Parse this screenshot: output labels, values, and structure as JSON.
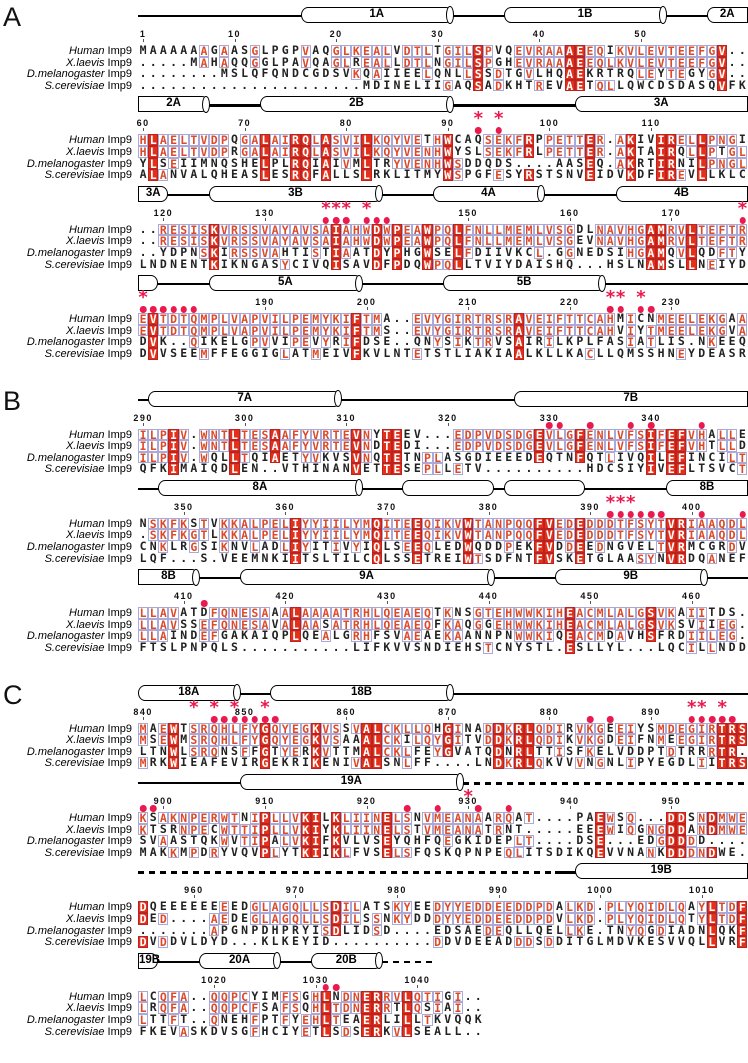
{
  "figure": {
    "description": "Multiple sequence alignment of Imp9 orthologs with secondary structure",
    "colors": {
      "conserved_box": "#e23019",
      "similar_text": "#dd4a28",
      "group_outline": "#a9a9da",
      "marker": "#ea1a4e",
      "structure_outline": "#000000"
    },
    "row_labels": [
      {
        "species": "Human",
        "rest": " Imp9"
      },
      {
        "species": "X.laevis",
        "rest": " Imp9"
      },
      {
        "species": "D.melanogaster",
        "rest": " Imp9"
      },
      {
        "species": "S.cerevisiae",
        "rest": " Imp9"
      }
    ],
    "panels": [
      {
        "letter": "A",
        "blocks": [
          {
            "start": 1,
            "cols": 60,
            "ticks": [
              1,
              10,
              20,
              30,
              40,
              50
            ],
            "asterisks": [],
            "dots": [],
            "structure": [
              {
                "type": "line",
                "from": 1,
                "to": 17
              },
              {
                "type": "helix",
                "label": "1A",
                "from": 17,
                "to": 31
              },
              {
                "type": "line",
                "from": 31,
                "to": 37
              },
              {
                "type": "helix",
                "label": "1B",
                "from": 37,
                "to": 52
              },
              {
                "type": "line",
                "from": 52,
                "to": 57
              },
              {
                "type": "helix",
                "label": "2A",
                "from": 57,
                "to": 60,
                "openRight": true
              }
            ],
            "seqs": [
              "MAAAAAAGAASGLPGPVAQGLKEALVDTLTGILSPVQEVRAAAEEQIKVLEVTEEFGV..",
              ".....MAHAQQGGLPAVQAGLREALLDTLNGILSPGHEVRAAAEEQLKVLEVTEEFGV..",
              "........MSLQFQNDCGDSVKQAIIEELQNLLSSDTGVLHQAEKRTRQLEYTEGYGV..",
              "......................MDINELIIGAQSADKHTREVAETQLLQWCDSDASQVFK"
            ]
          },
          {
            "start": 60,
            "cols": 60,
            "ticks": [
              60,
              70,
              80,
              90,
              100,
              110
            ],
            "asterisks": [
              93,
              95
            ],
            "dots": [
              93,
              95
            ],
            "structure": [
              {
                "type": "helix",
                "label": "2A",
                "from": 60,
                "to": 66,
                "openLeft": true
              },
              {
                "type": "line",
                "from": 66,
                "to": 72
              },
              {
                "type": "helix",
                "label": "2B",
                "from": 72,
                "to": 90
              },
              {
                "type": "line",
                "from": 90,
                "to": 103
              },
              {
                "type": "helix",
                "label": "3A",
                "from": 103,
                "to": 119,
                "openRight": true
              }
            ],
            "seqs": [
              "HLAELTVDPQGALAIRQLASVILKQYVETHWCAQSEKFRPPETTER.AKIVIRELLPNGI",
              "HLAELTVDPRGALAIRQLASVILKQYVENHWYSLSEKFRLPETTER.AKTAIRQLLPTGL",
              "YLSEIIMNQSHELPLRQIAIVMLTRYVENHWSDDQDS....AASEQ.AKRTIRNILPNGL",
              "ALANVALQHEASLESRQFALLSLRKLITMYWSPGFESYRSTSNVEIDVKDFIREVLLKLC"
            ]
          },
          {
            "start": 118,
            "cols": 60,
            "ticks": [
              120,
              130,
              150,
              160,
              170
            ],
            "asterisks": [
              136,
              137,
              138,
              140,
              177
            ],
            "dots": [
              136,
              137,
              138,
              140,
              141,
              142,
              177
            ],
            "structure": [
              {
                "type": "helix",
                "label": "3A",
                "from": 118,
                "to": 120,
                "openLeft": true
              },
              {
                "type": "line",
                "from": 120,
                "to": 125
              },
              {
                "type": "helix",
                "label": "3B",
                "from": 125,
                "to": 141
              },
              {
                "type": "line",
                "from": 141,
                "to": 147
              },
              {
                "type": "helix",
                "label": "4A",
                "from": 147,
                "to": 157
              },
              {
                "type": "line",
                "from": 157,
                "to": 165
              },
              {
                "type": "helix",
                "label": "4B",
                "from": 165,
                "to": 177,
                "openRight": true
              }
            ],
            "seqs": [
              "..RESISKVRSSVAYAVSAIAHWDWPEAWPQLFNLLMEMLVSGDLNAVHGAMRVLTEFTR",
              "..RESISKVRSSVAYAVSAIAHWDWPEAWPQLFNLLMEMLVSGEVNAVHGAMRVLTEFTR",
              "..YDPNSKIRSSVAHTISTIAATDYPHGWSELFDIIVKCL.GGNEDSIHGAMQVLQDFTY",
              "LNDNENTKIKNGASYCIVQISAVDFPDQWPQLLTVIYDAISHQ...HSLNAMSLLNEIYD"
            ]
          },
          {
            "start": 178,
            "cols": 60,
            "ticks": [
              190,
              200,
              210,
              220,
              230
            ],
            "asterisks": [
              178,
              224,
              225,
              227
            ],
            "dots": [
              178,
              179,
              180,
              181,
              182,
              183,
              224,
              225,
              227,
              228
            ],
            "structure": [
              {
                "type": "helix",
                "label": "",
                "from": 178,
                "to": 179,
                "openLeft": true
              },
              {
                "type": "line",
                "from": 179,
                "to": 185
              },
              {
                "type": "helix",
                "label": "5A",
                "from": 185,
                "to": 199
              },
              {
                "type": "line",
                "from": 199,
                "to": 208
              },
              {
                "type": "helix",
                "label": "5B",
                "from": 208,
                "to": 223
              },
              {
                "type": "line",
                "from": 223,
                "to": 237
              }
            ],
            "seqs": [
              "EVTDTQMPLVAPVILPEMYKIFTMA..EVYGIRTRSRAVEIFTTCAHMICNMEELEKGAA",
              "EVTDTQMPLVAPVILPEMYKIFTMS..EVYGIRTRSRAVEIFTTCAHVIYTMEELEKGVA",
              "DVK..QIKELGPVVIPEVYRIFDSE..QNYSIKTRVSAIRILKPLFASIATLIS.NKEEQ",
              "DVVSEEMFFEGGIGLATMEIVFKVLNTETSTLIAKIAALKLLKACLLQMSSHNEYDEASR"
            ]
          }
        ]
      },
      {
        "letter": "B",
        "blocks": [
          {
            "start": 290,
            "cols": 60,
            "ticks": [
              290,
              300,
              310,
              320,
              330,
              340
            ],
            "asterisks": [],
            "dots": [
              330,
              331,
              334,
              338,
              340,
              345
            ],
            "structure": [
              {
                "type": "line",
                "from": 290,
                "to": 291
              },
              {
                "type": "helix",
                "label": "7A",
                "from": 291,
                "to": 309
              },
              {
                "type": "line",
                "from": 309,
                "to": 327
              },
              {
                "type": "helix",
                "label": "7B",
                "from": 327,
                "to": 349,
                "openRight": true
              }
            ],
            "seqs": [
              "ILPIV.WNTLTESAAFYVRTEVNYTEEV...EDPVDSDGEVLGFENLVFSIFEFVHALLE",
              "ILPIV.WNTLTESAAFYVRTEVNDTEDI...EDPVDSDGEVLGFENLVFSIFEFVHTLLD",
              "ILPIV.WQLLTQIAETYVKVSVNQTETNPLASGDIEEEDEQTNFQTLIVQILEFINCILT",
              "QFKIMAIQDLEN..VTHINANVETTESEPLLETV..........HDCSIYIVEFLTSVCT"
            ]
          },
          {
            "start": 346,
            "cols": 60,
            "ticks": [
              350,
              360,
              370,
              380,
              390,
              400
            ],
            "asterisks": [
              392,
              393,
              394
            ],
            "dots": [
              392,
              393,
              394,
              395,
              396,
              397,
              401,
              405
            ],
            "structure": [
              {
                "type": "line",
                "from": 346,
                "to": 348
              },
              {
                "type": "helix",
                "label": "8A",
                "from": 348,
                "to": 367
              },
              {
                "type": "line",
                "from": 367,
                "to": 372
              },
              {
                "type": "helix",
                "label": "",
                "from": 372,
                "to": 380
              },
              {
                "type": "line",
                "from": 380,
                "to": 382
              },
              {
                "type": "helix",
                "label": "",
                "from": 382,
                "to": 389
              },
              {
                "type": "line",
                "from": 389,
                "to": 398
              },
              {
                "type": "helix",
                "label": "8B",
                "from": 398,
                "to": 405,
                "openRight": true
              }
            ],
            "seqs": [
              "NSKFKSTVKKALPELIYYIILYMQITEEQIKVWTANPQQFVEDEDDDTFSYTVRIAAQDL",
              ".SKFKGTLKKALPELIYYIILYMQITEEQIKVWTANPQQFVEDEDDDTFSYTVRIAAQDL",
              "CNKLRGSIKNVLADLIYITIVYIQLSEEQLEDWQDDPEKFVDDEEDNGVELTVRMCGRDV",
              "LQF...S.VEEMNKIITSLTILCQLSSETREIWTSDFNTFVSKETGLAASYNVRDQANEF"
            ]
          },
          {
            "start": 406,
            "cols": 60,
            "ticks": [
              410,
              420,
              430,
              440,
              450,
              460
            ],
            "asterisks": [],
            "dots": [
              412
            ],
            "structure": [
              {
                "type": "helix",
                "label": "8B",
                "from": 406,
                "to": 411,
                "openLeft": true
              },
              {
                "type": "line",
                "from": 411,
                "to": 416
              },
              {
                "type": "helix",
                "label": "9A",
                "from": 416,
                "to": 440
              },
              {
                "type": "line",
                "from": 440,
                "to": 447
              },
              {
                "type": "helix",
                "label": "9B",
                "from": 447,
                "to": 461
              },
              {
                "type": "line",
                "from": 461,
                "to": 465
              }
            ],
            "seqs": [
              "LLAVATDFQNESAAALAAAATRHLQEAEQTKNSGTEHWWKIHEACMLALGSVKAIITDS.",
              "LLAVSSEFQNESAVALAASATRHLQEAEQFKAQGGEHWWKIHEACMLALGSVKSVIIEG.",
              "LLAINDEFGAKAIQPLQEALGRHFSVAEAEKAANNPNWWKIQEACMDAVHSFRDIILEG.",
              "FTSLPNPQLS...........LIFKVVSNDIEHSTCNYSTL.ESLLYL...LQCILLNDD"
            ]
          }
        ]
      },
      {
        "letter": "C",
        "blocks": [
          {
            "start": 840,
            "cols": 60,
            "ticks": [
              840,
              850,
              860,
              870,
              880,
              890
            ],
            "asterisks": [
              845,
              847,
              849,
              852,
              894,
              895,
              897
            ],
            "dots": [
              847,
              848,
              849,
              850,
              851,
              852,
              853,
              884,
              886,
              894,
              895,
              896,
              897,
              898
            ],
            "structure": [
              {
                "type": "helix",
                "label": "18A",
                "from": 840,
                "to": 849
              },
              {
                "type": "line",
                "from": 849,
                "to": 853
              },
              {
                "type": "helix",
                "label": "18B",
                "from": 853,
                "to": 870
              },
              {
                "type": "line",
                "from": 870,
                "to": 899
              }
            ],
            "seqs": [
              "MAEWTSRQHLFYGQYEGKVSSVALCKLLQHGINADDKRLQDIRVKGEEIYSMDEGIRTRS",
              "MSEWMSRQHLFYGQYEGKVSAAALCKILQYGITVDDKRLQDIKVKGDEIFNMEEGIRTRS",
              "LTNWLSRQNSFFGTYERKVTTMALCKLFEYGVATQDNRLTTISFKELVDDPTDTRRRTR.",
              "MRKWIEAFEVIRGEKRIKENIVALSNLFF....LNDKRLQKVVVNGNLIPYEGDLIITRS"
            ]
          },
          {
            "start": 898,
            "cols": 60,
            "ticks": [
              900,
              910,
              920,
              930,
              940,
              950
            ],
            "asterisks": [
              930
            ],
            "dots": [
              898,
              899,
              924,
              927,
              931,
              934
            ],
            "structure": [
              {
                "type": "line",
                "from": 898,
                "to": 908
              },
              {
                "type": "helix",
                "label": "19A",
                "from": 908,
                "to": 929
              },
              {
                "type": "dash",
                "from": 930,
                "to": 957
              }
            ],
            "seqs": [
              "KSAKNPERWTNIPLLVKILKLIINELSNVMEANAARQAT....PAEWSQ...DDSNDMWE",
              "KTSRNPECWTTIPLLVKIYKLIINELSTVMEANATRNT.....EEEWIQGNGDDANDMWE",
              "SVAASTQKWVTIPALVKIFKVLVSEYQHFQEGKIDEPLT....DSE...EDGDDDD....",
              "MAKKMPDRYVQVPLYTKIIKLFVSELSFQSKQPNPEQLITSDIKQEVVNANKDDDNDWE."
            ]
          },
          {
            "start": 955,
            "cols": 60,
            "ticks": [
              960,
              970,
              980,
              990,
              1000,
              1010
            ],
            "asterisks": [],
            "dots": [],
            "structure": [
              {
                "type": "dash",
                "from": 955,
                "to": 996
              },
              {
                "type": "line",
                "from": 996,
                "to": 998
              },
              {
                "type": "helix",
                "label": "19B",
                "from": 998,
                "to": 1014,
                "openRight": true
              }
            ],
            "seqs": [
              "DQEEEEEEEEDGLAGQLLSDILATSKYEEDYYEDDEEDDPDALKD.PLYQIDLQAYLTDF",
              "DED....AEDEGLAGQLLSDILSSNKYDDDYYEDDEEDDPDVLKD.PLYQIDLQTYLTDF",
              ".......APGNPDHPRYISDLIDSD....EDSAEDEQLLQELLKE.TNYQGDIADNLQKF",
              "DVDDVLDYD...KLKEYID..........DDVDEEADDDSDDITGLMDVKESVVQLLVRF"
            ]
          },
          {
            "start": 1013,
            "cols": 34,
            "ticks": [
              1020,
              1030,
              1040
            ],
            "asterisks": [],
            "dots": [
              1031,
              1032
            ],
            "structure": [
              {
                "type": "helix",
                "label": "19B",
                "from": 1013,
                "to": 1014,
                "openLeft": true
              },
              {
                "type": "line",
                "from": 1014,
                "to": 1019
              },
              {
                "type": "helix",
                "label": "20A",
                "from": 1019,
                "to": 1026
              },
              {
                "type": "line",
                "from": 1026,
                "to": 1030
              },
              {
                "type": "helix",
                "label": "20B",
                "from": 1030,
                "to": 1036
              },
              {
                "type": "dash",
                "from": 1037,
                "to": 1041
              }
            ],
            "seqs": [
              "LCQFA..QQPCYIMFSGHLNDNERRVLQTIGI..",
              "LRQFA..QQPCFSAFSQHLTDNERRTLQSIAI..",
              "LTTFT..QNEHFPTFYEHLTEAERLILLTKVQQK",
              "FKEVASKDVSGFHCIYETLSDSERKVLSEALL.."
            ]
          }
        ]
      }
    ]
  }
}
